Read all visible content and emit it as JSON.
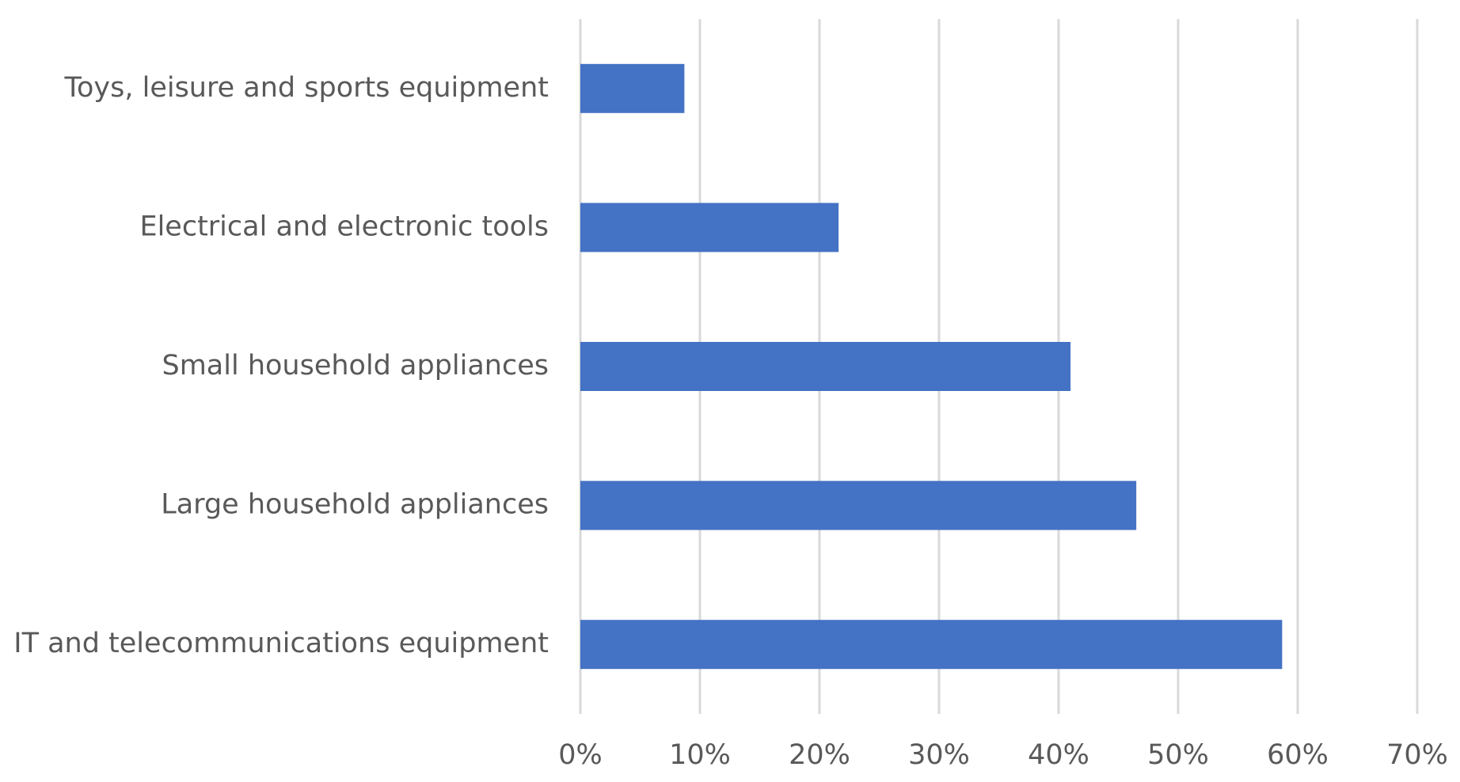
{
  "chart_data": {
    "type": "bar",
    "orientation": "horizontal",
    "title": "",
    "xlabel": "",
    "ylabel": "",
    "categories": [
      "Toys, leisure and sports equipment",
      "Electrical and electronic tools",
      "Small household appliances",
      "Large household appliances",
      "IT and telecommunications equipment"
    ],
    "series": [
      {
        "values": [
          0.087,
          0.216,
          0.41,
          0.465,
          0.587
        ],
        "color": "#4472c4"
      }
    ],
    "xlim": [
      0,
      0.7
    ],
    "xticks": [
      0,
      0.1,
      0.2,
      0.3,
      0.4,
      0.5,
      0.6,
      0.7
    ],
    "xtick_labels": [
      "0%",
      "10%",
      "20%",
      "30%",
      "40%",
      "50%",
      "60%",
      "70%"
    ],
    "grid": "vertical",
    "legend": "none"
  }
}
